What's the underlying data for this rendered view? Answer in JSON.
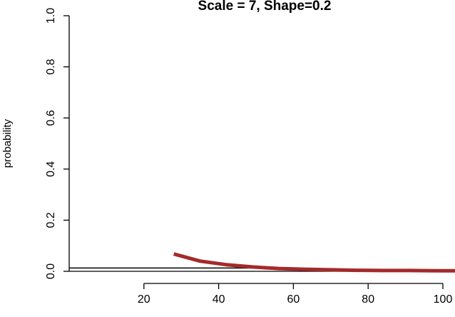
{
  "chart_data": {
    "type": "line",
    "title": "Scale = 7,  Shape=0.2",
    "xlabel": "",
    "ylabel": "probability",
    "xlim": [
      0,
      104
    ],
    "ylim": [
      0,
      1
    ],
    "x_ticks": [
      "20",
      "40",
      "60",
      "80",
      "100"
    ],
    "y_ticks": [
      "0.0",
      "0.2",
      "0.4",
      "0.6",
      "0.8",
      "1.0"
    ],
    "grid": false,
    "series": [
      {
        "color": "#a52a2a",
        "x": [
          28,
          35,
          42,
          49,
          56,
          63,
          70,
          77,
          84,
          91,
          98,
          104
        ],
        "y": [
          0.068,
          0.04,
          0.026,
          0.017,
          0.011,
          0.008,
          0.006,
          0.004,
          0.003,
          0.003,
          0.002,
          0.002
        ]
      }
    ],
    "reference_line": {
      "x": [
        0,
        56
      ],
      "y": [
        0.013,
        0.013
      ],
      "color": "#000000"
    }
  }
}
